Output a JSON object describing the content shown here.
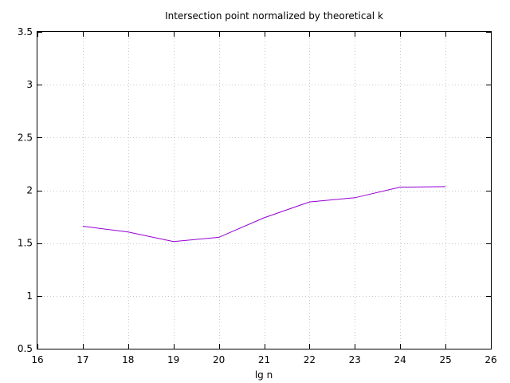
{
  "chart_data": {
    "type": "line",
    "title": "Intersection point normalized by theoretical k",
    "xlabel": "lg n",
    "ylabel": "",
    "xlim": [
      16,
      26
    ],
    "ylim": [
      0.5,
      3.5
    ],
    "xticks": [
      16,
      17,
      18,
      19,
      20,
      21,
      22,
      23,
      24,
      25,
      26
    ],
    "yticks": [
      0.5,
      1,
      1.5,
      2,
      2.5,
      3,
      3.5
    ],
    "xtick_labels": [
      "16",
      "17",
      "18",
      "19",
      "20",
      "21",
      "22",
      "23",
      "24",
      "25",
      "26"
    ],
    "ytick_labels": [
      "0.5",
      "1",
      "1.5",
      "2",
      "2.5",
      "3",
      "3.5"
    ],
    "grid": true,
    "legend": "none",
    "series": [
      {
        "color": "#9400d3",
        "x": [
          17,
          18,
          19,
          20,
          21,
          22,
          23,
          24,
          25
        ],
        "y": [
          1.66,
          1.605,
          1.515,
          1.555,
          1.74,
          1.89,
          1.93,
          2.03,
          2.035
        ]
      }
    ]
  }
}
